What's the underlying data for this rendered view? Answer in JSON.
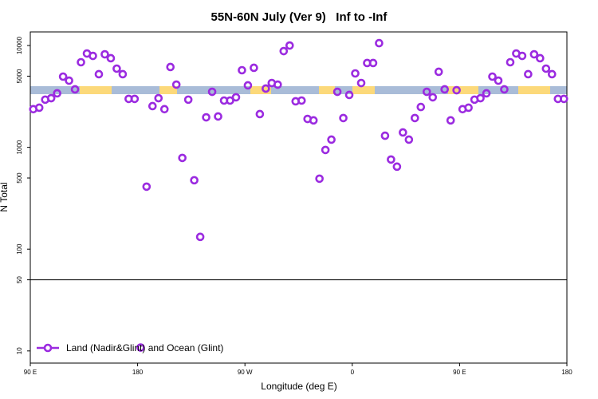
{
  "chart_data": {
    "type": "scatter",
    "title": "55N-60N July (Ver 9)   Inf to -Inf",
    "xlabel": "Longitude (deg E)",
    "ylabel": "N Total",
    "log_y": true,
    "xlim": [
      90,
      540
    ],
    "ylim": [
      7.6,
      13600
    ],
    "xticks": [
      {
        "value": 90,
        "label": "90 E"
      },
      180,
      {
        "value": 270,
        "label": "90 W"
      },
      {
        "value": 360,
        "label": "0"
      },
      {
        "value": 450,
        "label": "90 E"
      },
      {
        "value": 540,
        "label": "180"
      }
    ],
    "yticks": [
      10,
      50,
      100,
      500,
      1000,
      5000,
      10000
    ],
    "hline": 50,
    "legend": "bottom-left",
    "series": [
      {
        "name": "Land (Nadir&Glint) and Ocean (Glint)",
        "color": "#9b2be0",
        "x": [
          92.5,
          97.5,
          102.5,
          107.5,
          112.5,
          117.5,
          122.5,
          127.5,
          132.5,
          137.5,
          142.5,
          147.5,
          152.5,
          157.5,
          162.5,
          167.5,
          172.5,
          177.5,
          182.5,
          187.5,
          192.5,
          197.5,
          202.5,
          207.5,
          212.5,
          217.5,
          222.5,
          227.5,
          232.5,
          237.5,
          242.5,
          247.5,
          252.5,
          257.5,
          262.5,
          267.5,
          272.5,
          277.5,
          282.5,
          287.5,
          292.5,
          297.5,
          302.5,
          307.5,
          312.5,
          317.5,
          322.5,
          327.5,
          332.5,
          337.5,
          342.5,
          347.5,
          352.5,
          357.5,
          362.5,
          367.5,
          372.5,
          377.5,
          382.5,
          387.5,
          392.5,
          397.5,
          402.5,
          407.5,
          412.5,
          417.5,
          422.5,
          427.5,
          432.5,
          437.5,
          442.5,
          447.5,
          452.5,
          457.5,
          462.5,
          467.5,
          472.5,
          477.5,
          482.5,
          487.5,
          492.5,
          497.5,
          502.5,
          507.5,
          512.5,
          517.5,
          522.5,
          527.5,
          532.5,
          537.5
        ],
        "values": [
          2370,
          2450,
          2940,
          3040,
          3390,
          4950,
          4520,
          3710,
          6850,
          8350,
          7910,
          5230,
          8200,
          7500,
          5930,
          5230,
          2990,
          2990,
          10.8,
          411,
          2540,
          3040,
          2370,
          6150,
          4130,
          787,
          2940,
          475,
          132,
          1970,
          3510,
          2010,
          2880,
          2880,
          3100,
          5720,
          4060,
          6040,
          2120,
          3780,
          4280,
          4130,
          8810,
          10000,
          2830,
          2880,
          1900,
          1840,
          492,
          942,
          1190,
          3510,
          1940,
          3270,
          5320,
          4280,
          6730,
          6730,
          10550,
          1300,
          759,
          646,
          1400,
          1190,
          1940,
          2490,
          3510,
          3100,
          5520,
          3710,
          1840,
          3640,
          2370,
          2450,
          2940,
          3040,
          3390,
          4950,
          4520,
          3710,
          6850,
          8350,
          7910,
          5230,
          8200,
          7500,
          5930,
          5230,
          2990,
          2990
        ]
      }
    ]
  }
}
